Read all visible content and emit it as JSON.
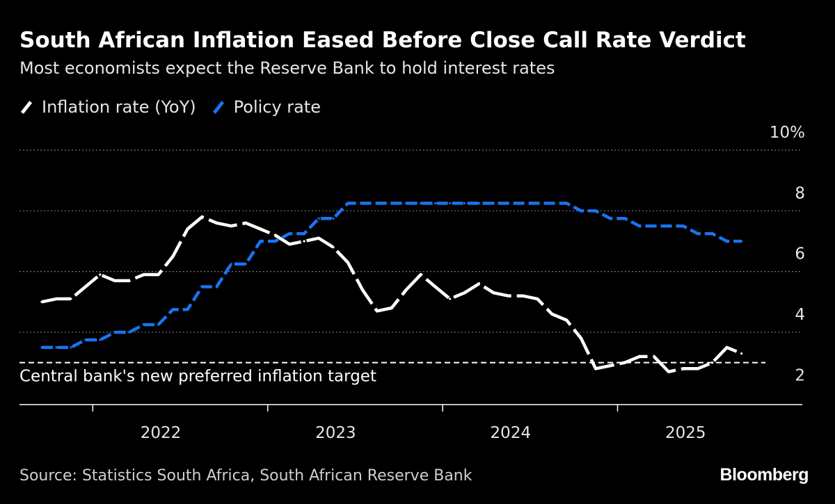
{
  "header": {
    "title": "South African Inflation Eased Before Close Call Rate Verdict",
    "subtitle": "Most economists expect the Reserve Bank to hold interest rates"
  },
  "legend": [
    {
      "label": "Inflation rate (YoY)",
      "color": "#ffffff"
    },
    {
      "label": "Policy rate",
      "color": "#1a73f0"
    }
  ],
  "footer": {
    "source": "Source: Statistics South Africa, South African Reserve Bank",
    "brand": "Bloomberg"
  },
  "chart_data": {
    "type": "line",
    "x_label_ticks": [
      "2022",
      "2023",
      "2024",
      "2025"
    ],
    "y_ticks": [
      2,
      4,
      6,
      8,
      10
    ],
    "y_tick_labels": [
      "2",
      "4",
      "6",
      "8",
      "10%"
    ],
    "ylim": [
      1.8,
      10
    ],
    "target_line": {
      "value": 3,
      "label": "Central bank's new preferred inflation target"
    },
    "series": [
      {
        "name": "Inflation rate (YoY)",
        "color": "#ffffff",
        "start": "2021-09",
        "values": [
          5.0,
          5.1,
          5.1,
          5.5,
          5.9,
          5.7,
          5.7,
          5.9,
          5.9,
          6.5,
          7.4,
          7.8,
          7.6,
          7.5,
          7.6,
          7.4,
          7.2,
          6.9,
          7.0,
          7.1,
          6.8,
          6.3,
          5.4,
          4.7,
          4.8,
          5.4,
          5.9,
          5.5,
          5.1,
          5.3,
          5.6,
          5.3,
          5.2,
          5.2,
          5.1,
          4.6,
          4.4,
          3.8,
          2.8,
          2.9,
          3.0,
          3.2,
          3.2,
          2.7,
          2.8,
          2.8,
          3.0,
          3.5,
          3.3
        ]
      },
      {
        "name": "Policy rate",
        "color": "#1a73f0",
        "start": "2021-09",
        "values": [
          3.5,
          3.5,
          3.5,
          3.75,
          3.75,
          4.0,
          4.0,
          4.25,
          4.25,
          4.75,
          4.75,
          5.5,
          5.5,
          6.25,
          6.25,
          7.0,
          7.0,
          7.25,
          7.25,
          7.75,
          7.75,
          8.25,
          8.25,
          8.25,
          8.25,
          8.25,
          8.25,
          8.25,
          8.25,
          8.25,
          8.25,
          8.25,
          8.25,
          8.25,
          8.25,
          8.25,
          8.25,
          8.0,
          8.0,
          7.75,
          7.75,
          7.5,
          7.5,
          7.5,
          7.5,
          7.25,
          7.25,
          7.0,
          7.0
        ]
      }
    ]
  }
}
